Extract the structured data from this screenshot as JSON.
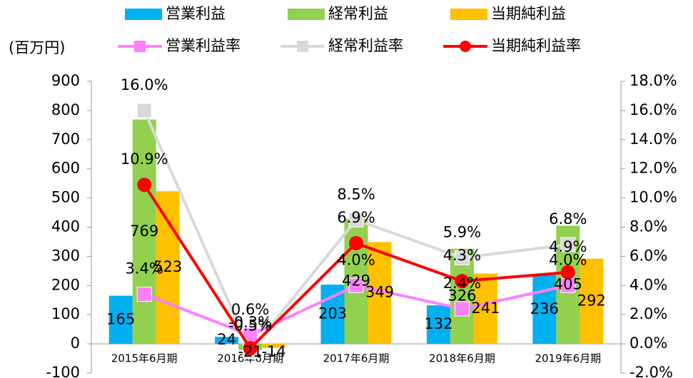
{
  "chart_data": {
    "type": "combo",
    "unit_label": "(百万円)",
    "categories": [
      "2015年6月期",
      "2016年6月期",
      "2017年6月期",
      "2018年6月期",
      "2019年6月期"
    ],
    "series": [
      {
        "name": "営業利益",
        "type": "bar",
        "color": "#00b0f0",
        "values": [
          165,
          24,
          203,
          132,
          236
        ]
      },
      {
        "name": "経常利益",
        "type": "bar",
        "color": "#92d050",
        "values": [
          769,
          -21,
          429,
          326,
          405
        ]
      },
      {
        "name": "当期純利益",
        "type": "bar",
        "color": "#ffc000",
        "values": [
          523,
          -14,
          349,
          241,
          292
        ]
      },
      {
        "name": "営業利益率",
        "type": "line",
        "axis": "y2",
        "color": "#ff80ff",
        "marker": "square",
        "values": [
          3.4,
          0.6,
          4.0,
          2.4,
          4.0
        ],
        "value_labels": [
          "3.4%",
          "0.6%",
          "4.0%",
          "2.4%",
          "4.0%"
        ]
      },
      {
        "name": "経常利益率",
        "type": "line",
        "axis": "y2",
        "color": "#d9d9d9",
        "marker": "square",
        "values": [
          16.0,
          -0.5,
          8.5,
          5.9,
          6.8
        ],
        "value_labels": [
          "16.0%",
          "-0.5%",
          "8.5%",
          "5.9%",
          "6.8%"
        ]
      },
      {
        "name": "当期純利益率",
        "type": "line",
        "axis": "y2",
        "color": "#ff0000",
        "marker": "circle",
        "values": [
          10.9,
          -0.3,
          6.9,
          4.3,
          4.9
        ],
        "value_labels": [
          "10.9%",
          "-0.3%",
          "6.9%",
          "4.3%",
          "4.9%"
        ]
      }
    ],
    "ylim": [
      -100,
      900
    ],
    "yticks": [
      -100,
      0,
      100,
      200,
      300,
      400,
      500,
      600,
      700,
      800,
      900
    ],
    "y2lim": [
      -2,
      18
    ],
    "y2ticks": [
      {
        "value": -2,
        "label": "-2.0%"
      },
      {
        "value": 0,
        "label": "0.0%"
      },
      {
        "value": 2,
        "label": "2.0%"
      },
      {
        "value": 4,
        "label": "4.0%"
      },
      {
        "value": 6,
        "label": "6.0%"
      },
      {
        "value": 8,
        "label": "8.0%"
      },
      {
        "value": 10,
        "label": "10.0%"
      },
      {
        "value": 12,
        "label": "12.0%"
      },
      {
        "value": 14,
        "label": "14.0%"
      },
      {
        "value": 16,
        "label": "16.0%"
      },
      {
        "value": 18,
        "label": "18.0%"
      }
    ]
  }
}
